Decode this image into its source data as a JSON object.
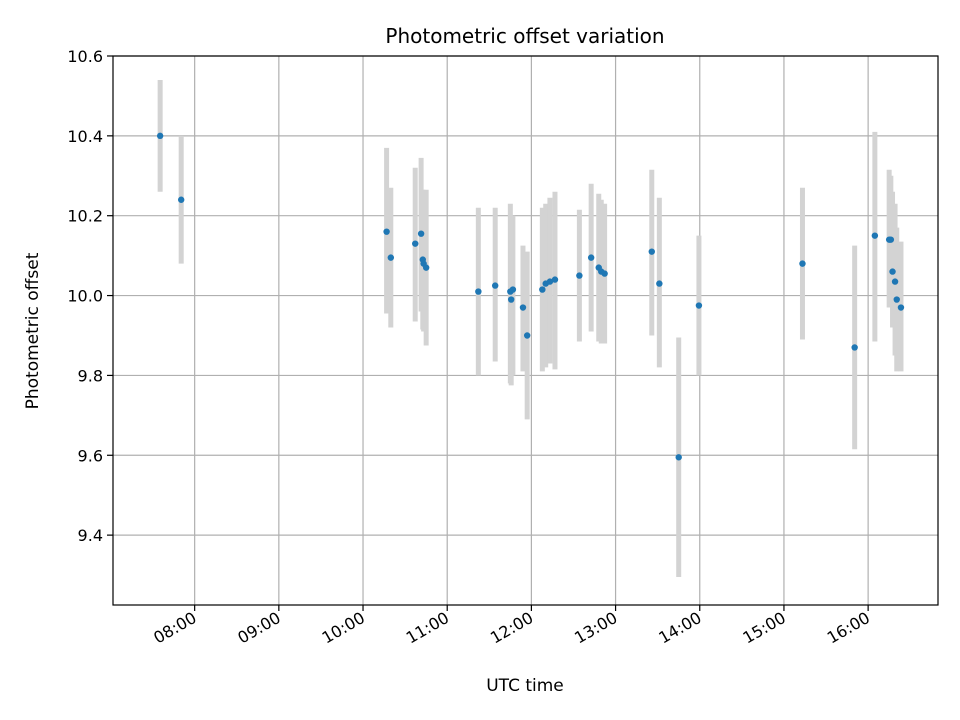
{
  "chart_data": {
    "type": "scatter",
    "title": "Photometric offset variation",
    "xlabel": "UTC time",
    "ylabel": "Photometric offset",
    "grid": true,
    "legend": "none",
    "x_unit": "hours UTC",
    "xlim": [
      7.03,
      16.83
    ],
    "ylim": [
      9.225,
      10.6
    ],
    "x_ticks": [
      {
        "value": 8,
        "label": "08:00"
      },
      {
        "value": 9,
        "label": "09:00"
      },
      {
        "value": 10,
        "label": "10:00"
      },
      {
        "value": 11,
        "label": "11:00"
      },
      {
        "value": 12,
        "label": "12:00"
      },
      {
        "value": 13,
        "label": "13:00"
      },
      {
        "value": 14,
        "label": "14:00"
      },
      {
        "value": 15,
        "label": "15:00"
      },
      {
        "value": 16,
        "label": "16:00"
      }
    ],
    "y_ticks": [
      {
        "value": 9.4,
        "label": "9.4"
      },
      {
        "value": 9.6,
        "label": "9.6"
      },
      {
        "value": 9.8,
        "label": "9.8"
      },
      {
        "value": 10.0,
        "label": "10.0"
      },
      {
        "value": 10.2,
        "label": "10.2"
      },
      {
        "value": 10.4,
        "label": "10.4"
      },
      {
        "value": 10.6,
        "label": "10.6"
      }
    ],
    "colors": {
      "marker": "#1f77b4",
      "errorbar": "#d3d3d3",
      "grid": "#b0b0b0"
    },
    "points": [
      {
        "x": 7.59,
        "y": 10.4,
        "lo": 10.26,
        "hi": 10.54
      },
      {
        "x": 7.84,
        "y": 10.24,
        "lo": 10.08,
        "hi": 10.4
      },
      {
        "x": 10.28,
        "y": 10.16,
        "lo": 9.955,
        "hi": 10.37
      },
      {
        "x": 10.33,
        "y": 10.095,
        "lo": 9.92,
        "hi": 10.27
      },
      {
        "x": 10.62,
        "y": 10.13,
        "lo": 9.935,
        "hi": 10.32
      },
      {
        "x": 10.69,
        "y": 10.155,
        "lo": 9.96,
        "hi": 10.345
      },
      {
        "x": 10.71,
        "y": 10.09,
        "lo": 9.915,
        "hi": 10.265
      },
      {
        "x": 10.72,
        "y": 10.08,
        "lo": 9.91,
        "hi": 10.26
      },
      {
        "x": 10.75,
        "y": 10.07,
        "lo": 9.875,
        "hi": 10.265
      },
      {
        "x": 11.37,
        "y": 10.01,
        "lo": 9.8,
        "hi": 10.22
      },
      {
        "x": 11.57,
        "y": 10.025,
        "lo": 9.835,
        "hi": 10.22
      },
      {
        "x": 11.75,
        "y": 10.01,
        "lo": 9.78,
        "hi": 10.23
      },
      {
        "x": 11.78,
        "y": 10.015,
        "lo": 9.8,
        "hi": 10.2
      },
      {
        "x": 11.76,
        "y": 9.99,
        "lo": 9.775,
        "hi": 10.2
      },
      {
        "x": 11.9,
        "y": 9.97,
        "lo": 9.81,
        "hi": 10.125
      },
      {
        "x": 11.95,
        "y": 9.9,
        "lo": 9.69,
        "hi": 10.11
      },
      {
        "x": 12.13,
        "y": 10.015,
        "lo": 9.81,
        "hi": 10.22
      },
      {
        "x": 12.17,
        "y": 10.03,
        "lo": 9.82,
        "hi": 10.23
      },
      {
        "x": 12.22,
        "y": 10.035,
        "lo": 9.83,
        "hi": 10.245
      },
      {
        "x": 12.28,
        "y": 10.04,
        "lo": 9.815,
        "hi": 10.26
      },
      {
        "x": 12.57,
        "y": 10.05,
        "lo": 9.885,
        "hi": 10.215
      },
      {
        "x": 12.71,
        "y": 10.095,
        "lo": 9.91,
        "hi": 10.28
      },
      {
        "x": 12.8,
        "y": 10.07,
        "lo": 9.885,
        "hi": 10.255
      },
      {
        "x": 12.83,
        "y": 10.06,
        "lo": 9.88,
        "hi": 10.24
      },
      {
        "x": 12.87,
        "y": 10.055,
        "lo": 9.88,
        "hi": 10.23
      },
      {
        "x": 13.43,
        "y": 10.11,
        "lo": 9.9,
        "hi": 10.315
      },
      {
        "x": 13.52,
        "y": 10.03,
        "lo": 9.82,
        "hi": 10.245
      },
      {
        "x": 13.75,
        "y": 9.595,
        "lo": 9.295,
        "hi": 9.895
      },
      {
        "x": 13.99,
        "y": 9.975,
        "lo": 9.8,
        "hi": 10.15
      },
      {
        "x": 15.22,
        "y": 10.08,
        "lo": 9.89,
        "hi": 10.27
      },
      {
        "x": 15.84,
        "y": 9.87,
        "lo": 9.615,
        "hi": 10.125
      },
      {
        "x": 16.08,
        "y": 10.15,
        "lo": 9.885,
        "hi": 10.41
      },
      {
        "x": 16.25,
        "y": 10.14,
        "lo": 9.97,
        "hi": 10.315
      },
      {
        "x": 16.27,
        "y": 10.14,
        "lo": 9.985,
        "hi": 10.3
      },
      {
        "x": 16.29,
        "y": 10.06,
        "lo": 9.92,
        "hi": 10.26
      },
      {
        "x": 16.32,
        "y": 10.035,
        "lo": 9.85,
        "hi": 10.23
      },
      {
        "x": 16.34,
        "y": 9.99,
        "lo": 9.81,
        "hi": 10.17
      },
      {
        "x": 16.39,
        "y": 9.97,
        "lo": 9.81,
        "hi": 10.135
      }
    ]
  }
}
